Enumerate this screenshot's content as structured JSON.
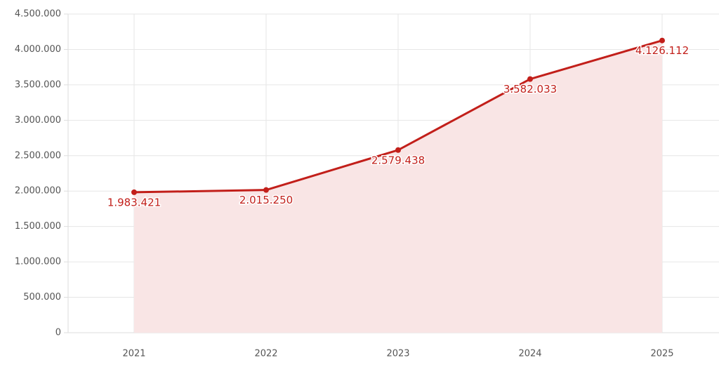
{
  "chart_data": {
    "type": "area",
    "categories": [
      "2021",
      "2022",
      "2023",
      "2024",
      "2025"
    ],
    "values": [
      1983421,
      2015250,
      2579438,
      3582033,
      4126112
    ],
    "value_labels": [
      "1.983.421",
      "2.015.250",
      "2.579.438",
      "3.582.033",
      "4.126.112"
    ],
    "color": "#c21f1a",
    "fill_color": "#f9e5e5",
    "ylim": [
      0,
      4500000
    ],
    "yticks": [
      0,
      {
        "value": 500000,
        "label": "500.000"
      },
      {
        "value": 1000000,
        "label": "1.000.000"
      },
      {
        "value": 1500000,
        "label": "1.500.000"
      },
      {
        "value": 2000000,
        "label": "2.000.000"
      },
      {
        "value": 2500000,
        "label": "2.500.000"
      },
      {
        "value": 3000000,
        "label": "3.000.000"
      },
      {
        "value": 3500000,
        "label": "3.500.000"
      },
      {
        "value": 4000000,
        "label": "4.000.000"
      },
      {
        "value": 4500000,
        "label": "4.500.000"
      }
    ],
    "grid": true
  }
}
